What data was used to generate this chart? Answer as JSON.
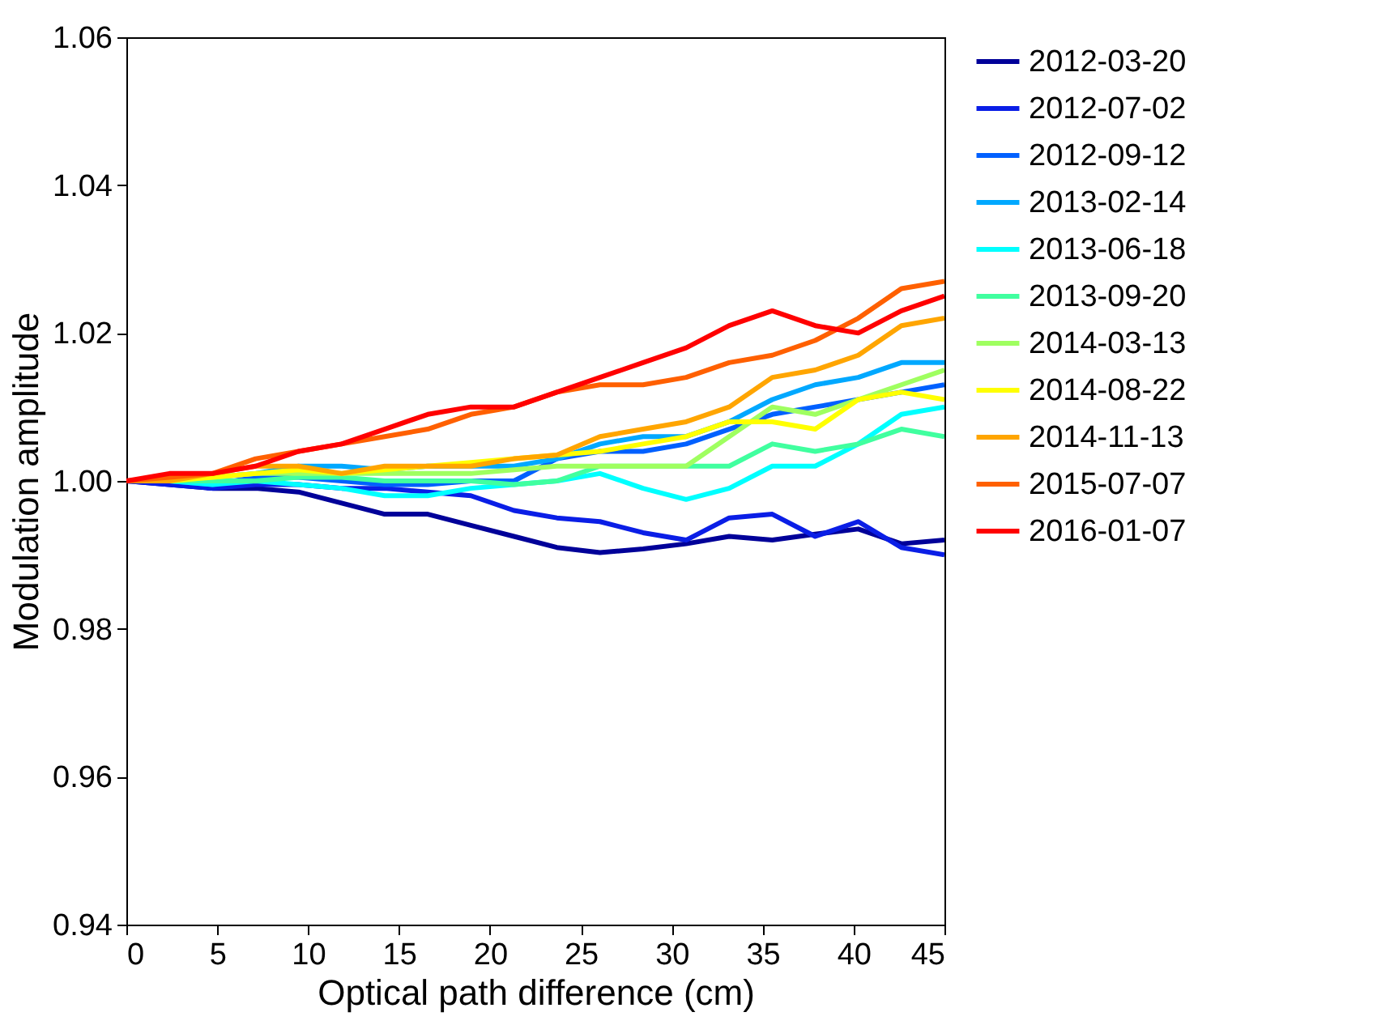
{
  "chart_data": {
    "type": "line",
    "xlabel": "Optical path difference (cm)",
    "ylabel": "Modulation amplitude",
    "x": [
      0,
      2.37,
      4.74,
      7.11,
      9.47,
      11.84,
      14.21,
      16.58,
      18.95,
      21.32,
      23.68,
      26.05,
      28.42,
      30.79,
      33.16,
      35.53,
      37.89,
      40.26,
      42.63,
      45
    ],
    "xlim": [
      0,
      45
    ],
    "xticks": [
      0,
      5,
      10,
      15,
      20,
      25,
      30,
      35,
      40,
      45
    ],
    "ylim": [
      0.94,
      1.06
    ],
    "yticks": [
      {
        "value": 0.94,
        "label": "0.94"
      },
      {
        "value": 0.96,
        "label": "0.96"
      },
      {
        "value": 0.98,
        "label": "0.98"
      },
      {
        "value": 1.0,
        "label": "1.00"
      },
      {
        "value": 1.02,
        "label": "1.02"
      },
      {
        "value": 1.04,
        "label": "1.04"
      },
      {
        "value": 1.06,
        "label": "1.06"
      }
    ],
    "grid": false,
    "legend": "right",
    "marker": "none",
    "line_style": "solid",
    "series": [
      {
        "name": "2012-03-20",
        "color": "#000099",
        "values": [
          1.0,
          0.9995,
          0.999,
          0.999,
          0.9985,
          0.997,
          0.9955,
          0.9955,
          0.994,
          0.9925,
          0.991,
          0.9903,
          0.9908,
          0.9915,
          0.9925,
          0.992,
          0.9928,
          0.9935,
          0.9915,
          0.992
        ]
      },
      {
        "name": "2012-07-02",
        "color": "#0a1ee6",
        "values": [
          1.0,
          0.9995,
          0.999,
          0.9995,
          0.9995,
          0.999,
          0.999,
          0.9985,
          0.998,
          0.996,
          0.995,
          0.9945,
          0.993,
          0.992,
          0.995,
          0.9955,
          0.9925,
          0.9945,
          0.991,
          0.99
        ]
      },
      {
        "name": "2012-09-12",
        "color": "#0060ff",
        "values": [
          1.0,
          1.0,
          0.9995,
          1.0005,
          1.0005,
          1.0,
          0.9995,
          0.9995,
          1.0,
          1.0,
          1.003,
          1.004,
          1.004,
          1.005,
          1.007,
          1.009,
          1.01,
          1.011,
          1.012,
          1.013
        ]
      },
      {
        "name": "2013-02-14",
        "color": "#00a8ff",
        "values": [
          1.0,
          1.0,
          1.0005,
          1.001,
          1.002,
          1.002,
          1.0015,
          1.002,
          1.002,
          1.002,
          1.003,
          1.005,
          1.006,
          1.006,
          1.008,
          1.011,
          1.013,
          1.014,
          1.016,
          1.016
        ]
      },
      {
        "name": "2013-06-18",
        "color": "#00ffff",
        "values": [
          1.0,
          1.0,
          0.9995,
          1.0,
          0.9995,
          0.999,
          0.998,
          0.998,
          0.999,
          0.9995,
          1.0,
          1.001,
          0.999,
          0.9975,
          0.999,
          1.002,
          1.002,
          1.005,
          1.009,
          1.01
        ]
      },
      {
        "name": "2013-09-20",
        "color": "#40ff9f",
        "values": [
          1.0,
          1.0,
          1.0,
          1.0,
          1.0005,
          1.0005,
          1.0,
          1.0,
          1.0,
          0.9995,
          1.0,
          1.002,
          1.002,
          1.002,
          1.002,
          1.005,
          1.004,
          1.005,
          1.007,
          1.006
        ]
      },
      {
        "name": "2014-03-13",
        "color": "#9fff60",
        "values": [
          1.0,
          1.0,
          1.0005,
          1.001,
          1.001,
          1.001,
          1.001,
          1.001,
          1.001,
          1.0015,
          1.002,
          1.002,
          1.002,
          1.002,
          1.006,
          1.01,
          1.009,
          1.011,
          1.013,
          1.015
        ]
      },
      {
        "name": "2014-08-22",
        "color": "#ffff00",
        "values": [
          1.0,
          1.0,
          1.0005,
          1.001,
          1.0015,
          1.001,
          1.0015,
          1.002,
          1.0025,
          1.003,
          1.0035,
          1.004,
          1.005,
          1.006,
          1.008,
          1.008,
          1.007,
          1.011,
          1.012,
          1.011
        ]
      },
      {
        "name": "2014-11-13",
        "color": "#ffa500",
        "values": [
          1.0,
          1.0,
          1.001,
          1.002,
          1.002,
          1.001,
          1.002,
          1.002,
          1.002,
          1.003,
          1.0035,
          1.006,
          1.007,
          1.008,
          1.01,
          1.014,
          1.015,
          1.017,
          1.021,
          1.022
        ]
      },
      {
        "name": "2015-07-07",
        "color": "#ff6000",
        "values": [
          1.0,
          1.0005,
          1.001,
          1.003,
          1.004,
          1.005,
          1.006,
          1.007,
          1.009,
          1.01,
          1.012,
          1.013,
          1.013,
          1.014,
          1.016,
          1.017,
          1.019,
          1.022,
          1.026,
          1.027
        ]
      },
      {
        "name": "2016-01-07",
        "color": "#ff0000",
        "values": [
          1.0,
          1.001,
          1.001,
          1.002,
          1.004,
          1.005,
          1.007,
          1.009,
          1.01,
          1.01,
          1.012,
          1.014,
          1.016,
          1.018,
          1.021,
          1.023,
          1.021,
          1.02,
          1.023,
          1.025
        ]
      }
    ]
  }
}
